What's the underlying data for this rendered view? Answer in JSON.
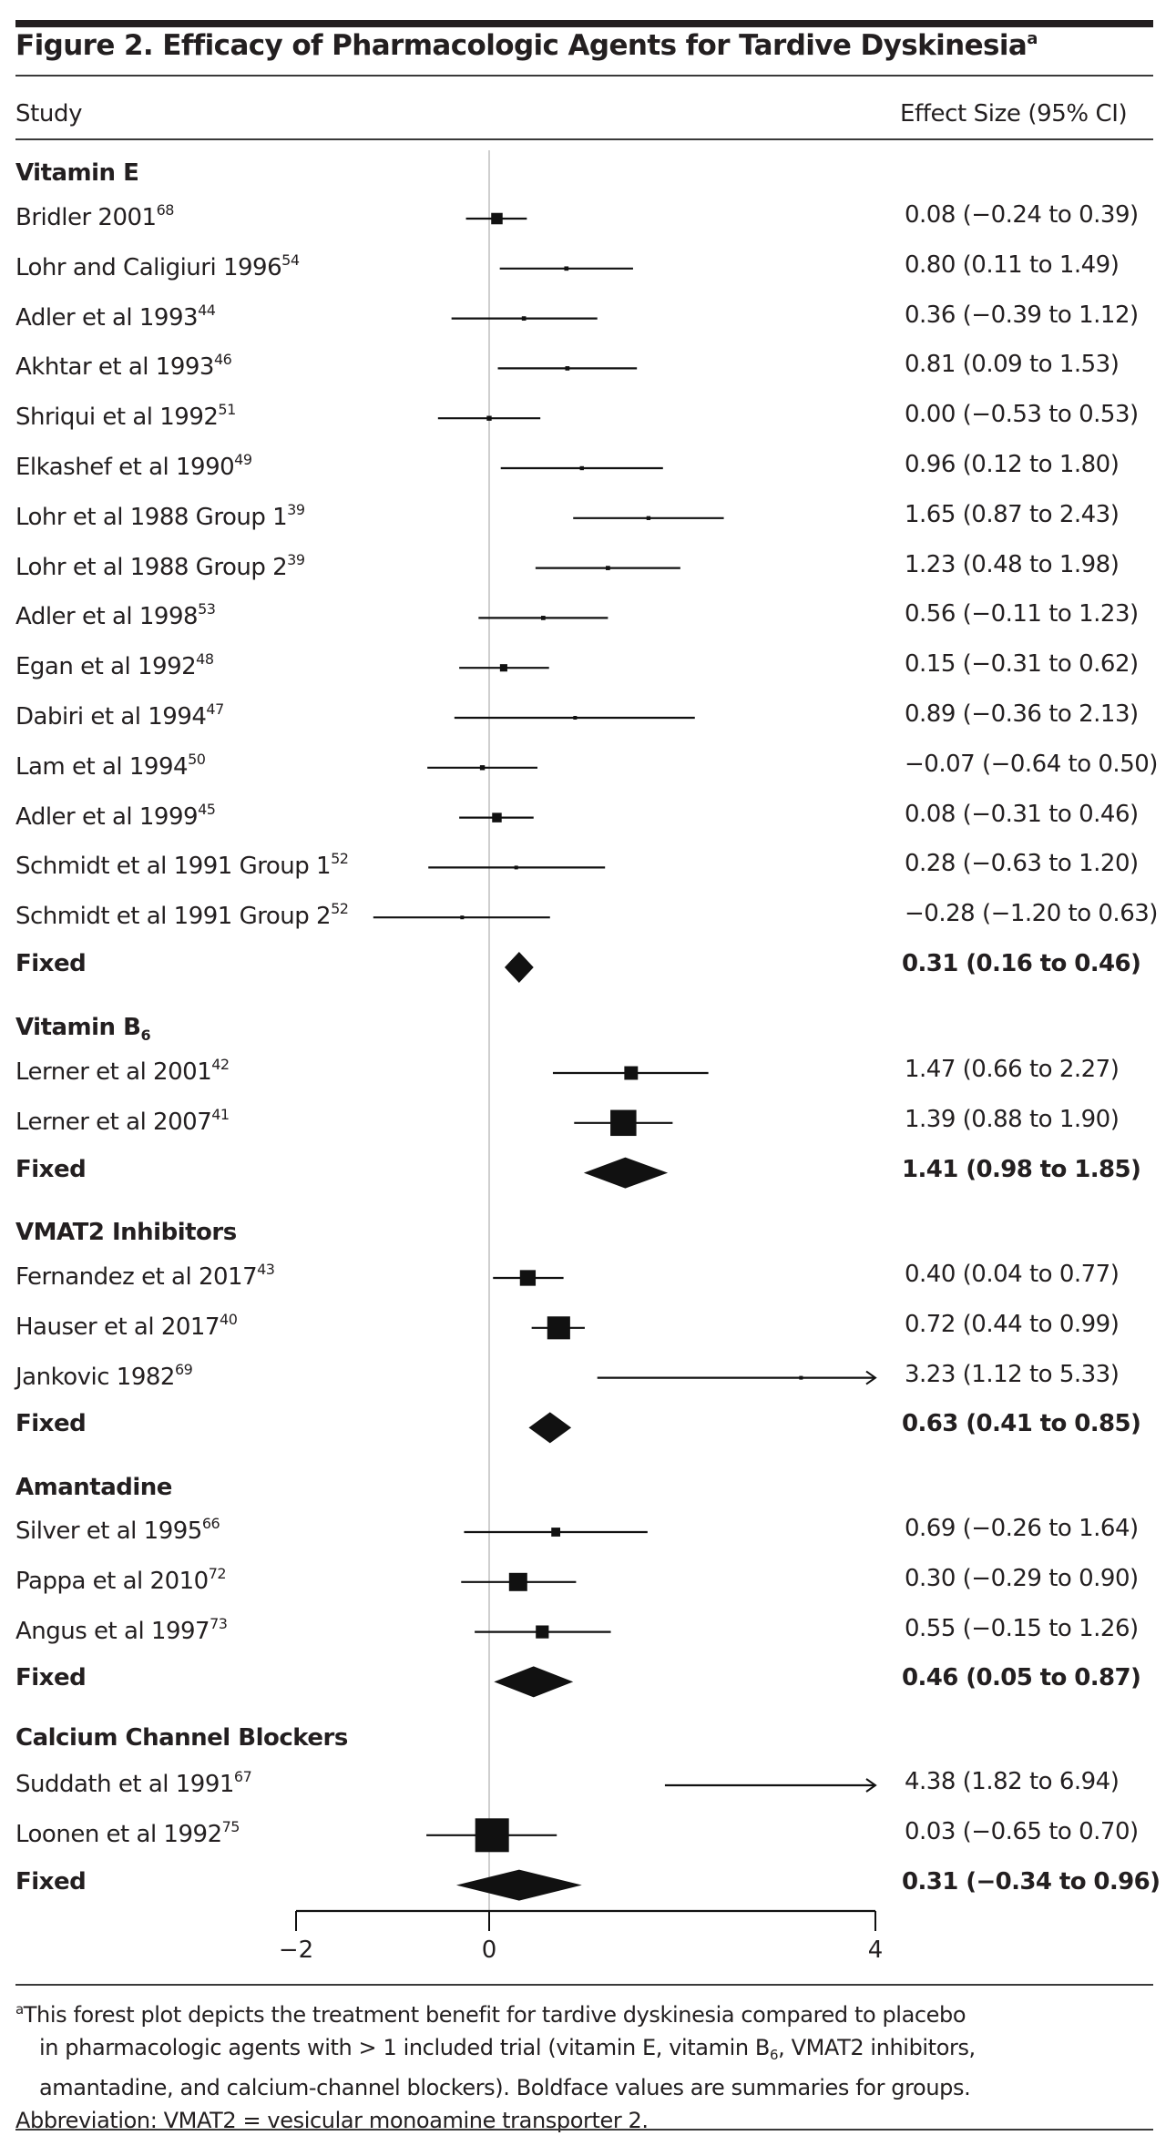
{
  "figure": {
    "title": "Figure 2. Efficacy of Pharmacologic Agents for Tardive Dyskinesia",
    "title_footnote_mark": "a",
    "column_study": "Study",
    "column_effect": "Effect Size (95% CI)"
  },
  "chart_data": {
    "type": "forest",
    "title": "Figure 2. Efficacy of Pharmacologic Agents for Tardive Dyskinesia",
    "xlabel": "",
    "xlim": [
      -2,
      4
    ],
    "xticks": [
      -2,
      0,
      4
    ],
    "xtick_labels": [
      "−2",
      "0",
      "4"
    ],
    "reference_line": 0,
    "groups": [
      {
        "name": "Vitamin E",
        "name_sub": "",
        "studies": [
          {
            "label": "Bridler 2001",
            "ref": "68",
            "es": 0.08,
            "lo": -0.24,
            "hi": 0.39,
            "text": "0.08 (−0.24 to 0.39)",
            "weight": 0.28
          },
          {
            "label": "Lohr and Caligiuri 1996",
            "ref": "54",
            "es": 0.8,
            "lo": 0.11,
            "hi": 1.49,
            "text": "0.80 (0.11 to 1.49)",
            "weight": 0.05
          },
          {
            "label": "Adler et al 1993",
            "ref": "44",
            "es": 0.36,
            "lo": -0.39,
            "hi": 1.12,
            "text": "0.36 (−0.39 to 1.12)",
            "weight": 0.05
          },
          {
            "label": "Akhtar et al 1993",
            "ref": "46",
            "es": 0.81,
            "lo": 0.09,
            "hi": 1.53,
            "text": "0.81 (0.09 to 1.53)",
            "weight": 0.05
          },
          {
            "label": "Shriqui et al 1992",
            "ref": "51",
            "es": 0.0,
            "lo": -0.53,
            "hi": 0.53,
            "text": "0.00 (−0.53 to 0.53)",
            "weight": 0.07
          },
          {
            "label": "Elkashef et al 1990",
            "ref": "49",
            "es": 0.96,
            "lo": 0.12,
            "hi": 1.8,
            "text": "0.96 (0.12 to 1.80)",
            "weight": 0.04
          },
          {
            "label": "Lohr et al 1988 Group 1",
            "ref": "39",
            "es": 1.65,
            "lo": 0.87,
            "hi": 2.43,
            "text": "1.65 (0.87 to 2.43)",
            "weight": 0.04
          },
          {
            "label": "Lohr et al 1988 Group 2",
            "ref": "39",
            "es": 1.23,
            "lo": 0.48,
            "hi": 1.98,
            "text": "1.23 (0.48 to 1.98)",
            "weight": 0.05
          },
          {
            "label": "Adler et al 1998",
            "ref": "53",
            "es": 0.56,
            "lo": -0.11,
            "hi": 1.23,
            "text": "0.56 (−0.11 to 1.23)",
            "weight": 0.05
          },
          {
            "label": "Egan et al 1992",
            "ref": "48",
            "es": 0.15,
            "lo": -0.31,
            "hi": 0.62,
            "text": "0.15 (−0.31 to 0.62)",
            "weight": 0.15
          },
          {
            "label": "Dabiri et al 1994",
            "ref": "47",
            "es": 0.89,
            "lo": -0.36,
            "hi": 2.13,
            "text": "0.89 (−0.36 to 2.13)",
            "weight": 0.03
          },
          {
            "label": "Lam et al 1994",
            "ref": "50",
            "es": -0.07,
            "lo": -0.64,
            "hi": 0.5,
            "text": "−0.07 (−0.64 to 0.50)",
            "weight": 0.07
          },
          {
            "label": "Adler et al 1999",
            "ref": "45",
            "es": 0.08,
            "lo": -0.31,
            "hi": 0.46,
            "text": "0.08 (−0.31 to 0.46)",
            "weight": 0.22
          },
          {
            "label": "Schmidt et al 1991 Group 1",
            "ref": "52",
            "es": 0.28,
            "lo": -0.63,
            "hi": 1.2,
            "text": "0.28 (−0.63 to 1.20)",
            "weight": 0.03
          },
          {
            "label": "Schmidt et al 1991 Group 2",
            "ref": "52",
            "es": -0.28,
            "lo": -1.2,
            "hi": 0.63,
            "text": "−0.28 (−1.20 to 0.63)",
            "weight": 0.03
          }
        ],
        "summary": {
          "label": "Fixed",
          "es": 0.31,
          "lo": 0.16,
          "hi": 0.46,
          "text": "0.31 (0.16 to 0.46)"
        }
      },
      {
        "name": "Vitamin B",
        "name_sub": "6",
        "studies": [
          {
            "label": "Lerner et al 2001",
            "ref": "42",
            "es": 1.47,
            "lo": 0.66,
            "hi": 2.27,
            "text": "1.47 (0.66 to 2.27)",
            "weight": 0.35
          },
          {
            "label": "Lerner et al 2007",
            "ref": "41",
            "es": 1.39,
            "lo": 0.88,
            "hi": 1.9,
            "text": "1.39 (0.88 to 1.90)",
            "weight": 0.75
          }
        ],
        "summary": {
          "label": "Fixed",
          "es": 1.41,
          "lo": 0.98,
          "hi": 1.85,
          "text": "1.41 (0.98 to 1.85)"
        }
      },
      {
        "name": "VMAT2 Inhibitors",
        "name_sub": "",
        "studies": [
          {
            "label": "Fernandez et al 2017",
            "ref": "43",
            "es": 0.4,
            "lo": 0.04,
            "hi": 0.77,
            "text": "0.40 (0.04 to 0.77)",
            "weight": 0.42
          },
          {
            "label": "Hauser et al 2017",
            "ref": "40",
            "es": 0.72,
            "lo": 0.44,
            "hi": 0.99,
            "text": "0.72 (0.44 to 0.99)",
            "weight": 0.65
          },
          {
            "label": "Jankovic 1982",
            "ref": "69",
            "es": 3.23,
            "lo": 1.12,
            "hi": 5.33,
            "text": "3.23 (1.12 to 5.33)",
            "weight": 0.03,
            "clipped_right": true
          }
        ],
        "summary": {
          "label": "Fixed",
          "es": 0.63,
          "lo": 0.41,
          "hi": 0.85,
          "text": "0.63 (0.41 to 0.85)"
        }
      },
      {
        "name": "Amantadine",
        "name_sub": "",
        "studies": [
          {
            "label": "Silver et al 1995",
            "ref": "66",
            "es": 0.69,
            "lo": -0.26,
            "hi": 1.64,
            "text": "0.69 (−0.26 to 1.64)",
            "weight": 0.2
          },
          {
            "label": "Pappa et al 2010",
            "ref": "72",
            "es": 0.3,
            "lo": -0.29,
            "hi": 0.9,
            "text": "0.30 (−0.29 to 0.90)",
            "weight": 0.5
          },
          {
            "label": "Angus et al 1997",
            "ref": "73",
            "es": 0.55,
            "lo": -0.15,
            "hi": 1.26,
            "text": "0.55 (−0.15 to 1.26)",
            "weight": 0.33
          }
        ],
        "summary": {
          "label": "Fixed",
          "es": 0.46,
          "lo": 0.05,
          "hi": 0.87,
          "text": "0.46 (0.05 to 0.87)"
        }
      },
      {
        "name": "Calcium Channel Blockers",
        "name_sub": "",
        "studies": [
          {
            "label": "Suddath et al 1991",
            "ref": "67",
            "es": 4.38,
            "lo": 1.82,
            "hi": 6.94,
            "text": "4.38 (1.82 to 6.94)",
            "weight": 0.02,
            "clipped_right": true
          },
          {
            "label": "Loonen et al 1992",
            "ref": "75",
            "es": 0.03,
            "lo": -0.65,
            "hi": 0.7,
            "text": "0.03 (−0.65 to 0.70)",
            "weight": 1.0
          }
        ],
        "summary": {
          "label": "Fixed",
          "es": 0.31,
          "lo": -0.34,
          "hi": 0.96,
          "text": "0.31 (−0.34 to 0.96)"
        }
      }
    ]
  },
  "footnote": {
    "mark": "a",
    "line1": "This forest plot depicts the treatment benefit for tardive dyskinesia compared to placebo",
    "line2_a": "in pharmacologic agents with > 1 included trial (vitamin E, vitamin B",
    "line2_sub": "6",
    "line2_b": ", VMAT2 inhibitors,",
    "line3": "amantadine, and calcium-channel blockers). Boldface values are summaries for groups.",
    "abbreviation": "Abbreviation: VMAT2 = vesicular monoamine transporter 2."
  }
}
